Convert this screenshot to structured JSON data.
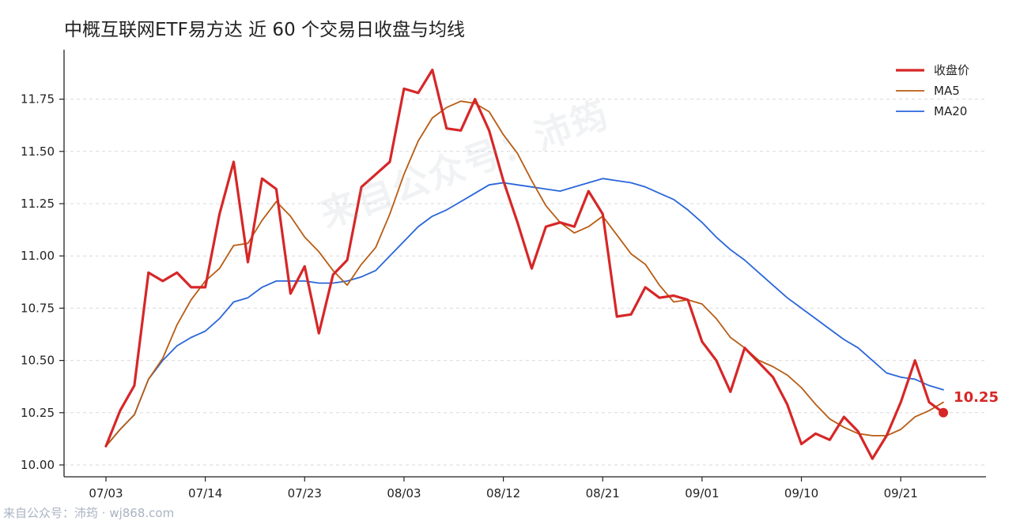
{
  "chart_data": {
    "type": "line",
    "title": "中概互联网ETF易方达 近 60 个交易日收盘与均线",
    "xlabel": "",
    "ylabel": "",
    "ylim": [
      9.96,
      11.98
    ],
    "yticks": [
      "10.00",
      "10.25",
      "10.50",
      "10.75",
      "11.00",
      "11.25",
      "11.50",
      "11.75"
    ],
    "ytick_values": [
      10.0,
      10.25,
      10.5,
      10.75,
      11.0,
      11.25,
      11.5,
      11.75
    ],
    "xticks": [
      {
        "label": "07/03",
        "index": 0
      },
      {
        "label": "07/14",
        "index": 7
      },
      {
        "label": "07/23",
        "index": 14
      },
      {
        "label": "08/03",
        "index": 21
      },
      {
        "label": "08/12",
        "index": 28
      },
      {
        "label": "08/21",
        "index": 35
      },
      {
        "label": "09/01",
        "index": 42
      },
      {
        "label": "09/10",
        "index": 49
      },
      {
        "label": "09/21",
        "index": 56
      }
    ],
    "grid": "horizontal-dashed",
    "legend_position": "top-right",
    "series": [
      {
        "name": "收盘价",
        "color": "#d62728",
        "values": [
          10.09,
          10.26,
          10.38,
          10.92,
          10.88,
          10.92,
          10.85,
          10.85,
          11.2,
          11.45,
          10.97,
          11.37,
          11.32,
          10.82,
          10.95,
          10.63,
          10.91,
          10.98,
          11.33,
          11.39,
          11.45,
          11.8,
          11.78,
          11.89,
          11.61,
          11.6,
          11.75,
          11.6,
          11.36,
          11.16,
          10.94,
          11.14,
          11.16,
          11.14,
          11.31,
          11.2,
          10.71,
          10.72,
          10.85,
          10.8,
          10.81,
          10.79,
          10.59,
          10.5,
          10.35,
          10.56,
          10.49,
          10.42,
          10.29,
          10.1,
          10.15,
          10.12,
          10.23,
          10.16,
          10.03,
          10.14,
          10.3,
          10.5,
          10.3,
          10.25
        ]
      },
      {
        "name": "MA5",
        "color": "#b85c14",
        "values": [
          10.09,
          10.17,
          10.24,
          10.41,
          10.51,
          10.67,
          10.79,
          10.88,
          10.94,
          11.05,
          11.06,
          11.17,
          11.26,
          11.19,
          11.09,
          11.02,
          10.93,
          10.86,
          10.96,
          11.04,
          11.2,
          11.39,
          11.55,
          11.66,
          11.71,
          11.74,
          11.73,
          11.69,
          11.58,
          11.49,
          11.36,
          11.24,
          11.16,
          11.11,
          11.14,
          11.19,
          11.1,
          11.01,
          10.96,
          10.86,
          10.78,
          10.79,
          10.77,
          10.7,
          10.61,
          10.56,
          10.5,
          10.47,
          10.43,
          10.37,
          10.29,
          10.22,
          10.18,
          10.15,
          10.14,
          10.14,
          10.17,
          10.23,
          10.26,
          10.3
        ]
      },
      {
        "name": "MA20",
        "color": "#2a66d9",
        "values": [
          10.09,
          10.17,
          10.24,
          10.41,
          10.5,
          10.57,
          10.61,
          10.64,
          10.7,
          10.78,
          10.8,
          10.85,
          10.88,
          10.88,
          10.88,
          10.87,
          10.87,
          10.88,
          10.9,
          10.93,
          11.0,
          11.07,
          11.14,
          11.19,
          11.22,
          11.26,
          11.3,
          11.34,
          11.35,
          11.34,
          11.33,
          11.32,
          11.31,
          11.33,
          11.35,
          11.37,
          11.36,
          11.35,
          11.33,
          11.3,
          11.27,
          11.22,
          11.16,
          11.09,
          11.03,
          10.98,
          10.92,
          10.86,
          10.8,
          10.75,
          10.7,
          10.65,
          10.6,
          10.56,
          10.5,
          10.44,
          10.42,
          10.41,
          10.38,
          10.36
        ]
      }
    ],
    "last_point_label": "10.25"
  },
  "watermark": {
    "footer": "来自公众号：沛筠 · wj868.com",
    "center": "来自公众号：沛筠"
  }
}
